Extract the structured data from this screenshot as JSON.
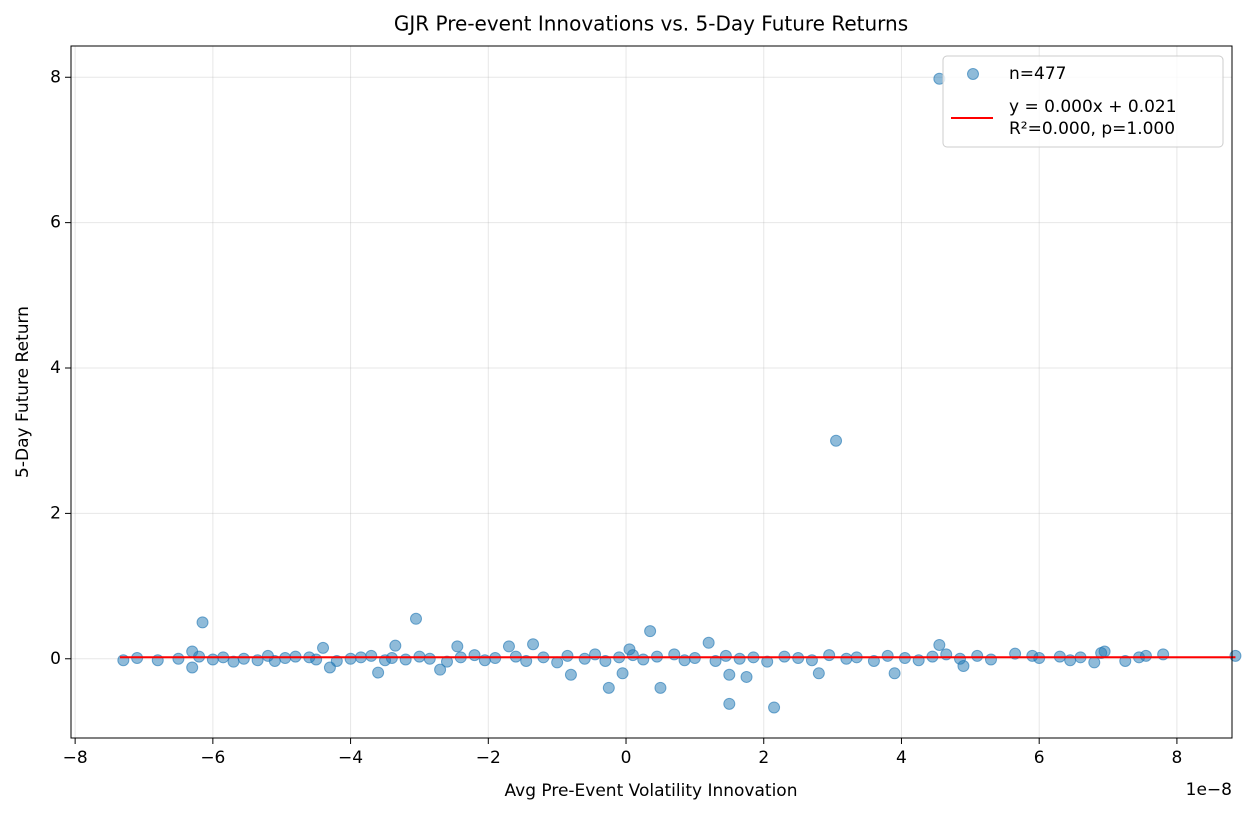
{
  "chart_data": {
    "type": "scatter",
    "title": "GJR Pre-event Innovations vs. 5-Day Future Returns",
    "x_label": "Avg Pre-Event Volatility Innovation",
    "y_label": "5-Day Future Return",
    "x_offset_label": "1e−8",
    "xlim": [
      -8.06,
      8.8
    ],
    "ylim": [
      -1.09,
      8.43
    ],
    "xticks": [
      {
        "value": -8,
        "label": "−8"
      },
      {
        "value": -6,
        "label": "−6"
      },
      {
        "value": -4,
        "label": "−4"
      },
      {
        "value": -2,
        "label": "−2"
      },
      0,
      2,
      4,
      6,
      8
    ],
    "yticks": [
      0,
      2,
      4,
      6,
      8
    ],
    "grid": true,
    "legend": "upper right",
    "series": [
      {
        "name": "n=477",
        "type": "scatter",
        "color": "#1f77b4",
        "x": [
          4.55,
          3.05,
          -3.05,
          -6.15,
          0.35,
          2.15,
          1.5,
          0.5,
          -0.25,
          -0.05,
          1.5,
          1.75,
          -0.8,
          2.8,
          3.9,
          -3.6,
          4.9,
          -6.3,
          -4.3,
          -2.7,
          -4.4,
          -3.35,
          -2.45,
          -1.7,
          -1.35,
          1.2,
          0.05,
          4.55,
          -6.3,
          6.95,
          -7.3,
          -7.1,
          -6.8,
          -6.5,
          -6.2,
          -6.0,
          -5.85,
          -5.7,
          -5.55,
          -5.35,
          -5.2,
          -5.1,
          -4.95,
          -4.8,
          -4.6,
          -4.5,
          -4.2,
          -4.0,
          -3.85,
          -3.7,
          -3.5,
          -3.4,
          -3.2,
          -3.0,
          -2.85,
          -2.6,
          -2.4,
          -2.2,
          -2.05,
          -1.9,
          -1.6,
          -1.45,
          -1.2,
          -1.0,
          -0.85,
          -0.6,
          -0.45,
          -0.3,
          -0.1,
          0.1,
          0.25,
          0.45,
          0.7,
          0.85,
          1.0,
          1.3,
          1.45,
          1.65,
          1.85,
          2.05,
          2.3,
          2.5,
          2.7,
          2.95,
          3.2,
          3.35,
          3.6,
          3.8,
          4.05,
          4.25,
          4.45,
          4.65,
          4.85,
          5.1,
          5.3,
          5.65,
          5.9,
          6.0,
          6.3,
          6.45,
          6.6,
          6.8,
          6.9,
          7.25,
          7.45,
          7.55,
          7.8,
          8.85
        ],
        "values": [
          7.98,
          3.0,
          0.55,
          0.5,
          0.38,
          -0.67,
          -0.62,
          -0.4,
          -0.4,
          -0.2,
          -0.22,
          -0.25,
          -0.22,
          -0.2,
          -0.2,
          -0.19,
          -0.1,
          -0.12,
          -0.12,
          -0.15,
          0.15,
          0.18,
          0.17,
          0.17,
          0.2,
          0.22,
          0.13,
          0.19,
          0.1,
          0.1,
          -0.02,
          0.01,
          -0.02,
          0.0,
          0.03,
          -0.01,
          0.02,
          -0.04,
          0.0,
          -0.02,
          0.04,
          -0.03,
          0.01,
          0.03,
          0.02,
          -0.01,
          -0.03,
          0.0,
          0.02,
          0.04,
          -0.02,
          0.01,
          -0.01,
          0.03,
          0.0,
          -0.04,
          0.02,
          0.05,
          -0.02,
          0.01,
          0.03,
          -0.03,
          0.02,
          -0.05,
          0.04,
          0.0,
          0.06,
          -0.03,
          0.02,
          0.05,
          -0.01,
          0.03,
          0.06,
          -0.02,
          0.01,
          -0.03,
          0.04,
          0.0,
          0.02,
          -0.04,
          0.03,
          0.01,
          -0.02,
          0.05,
          0.0,
          0.02,
          -0.03,
          0.04,
          0.01,
          -0.02,
          0.03,
          0.06,
          0.0,
          0.04,
          -0.01,
          0.07,
          0.04,
          0.01,
          0.03,
          -0.02,
          0.02,
          -0.05,
          0.08,
          -0.03,
          0.02,
          0.04,
          0.06,
          0.04
        ]
      },
      {
        "name": [
          "y = 0.000x + 0.021",
          "R²=0.000, p=1.000"
        ],
        "type": "line",
        "color": "#ff0000",
        "x": [
          -7.35,
          8.85
        ],
        "values": [
          0.021,
          0.021
        ]
      }
    ]
  }
}
